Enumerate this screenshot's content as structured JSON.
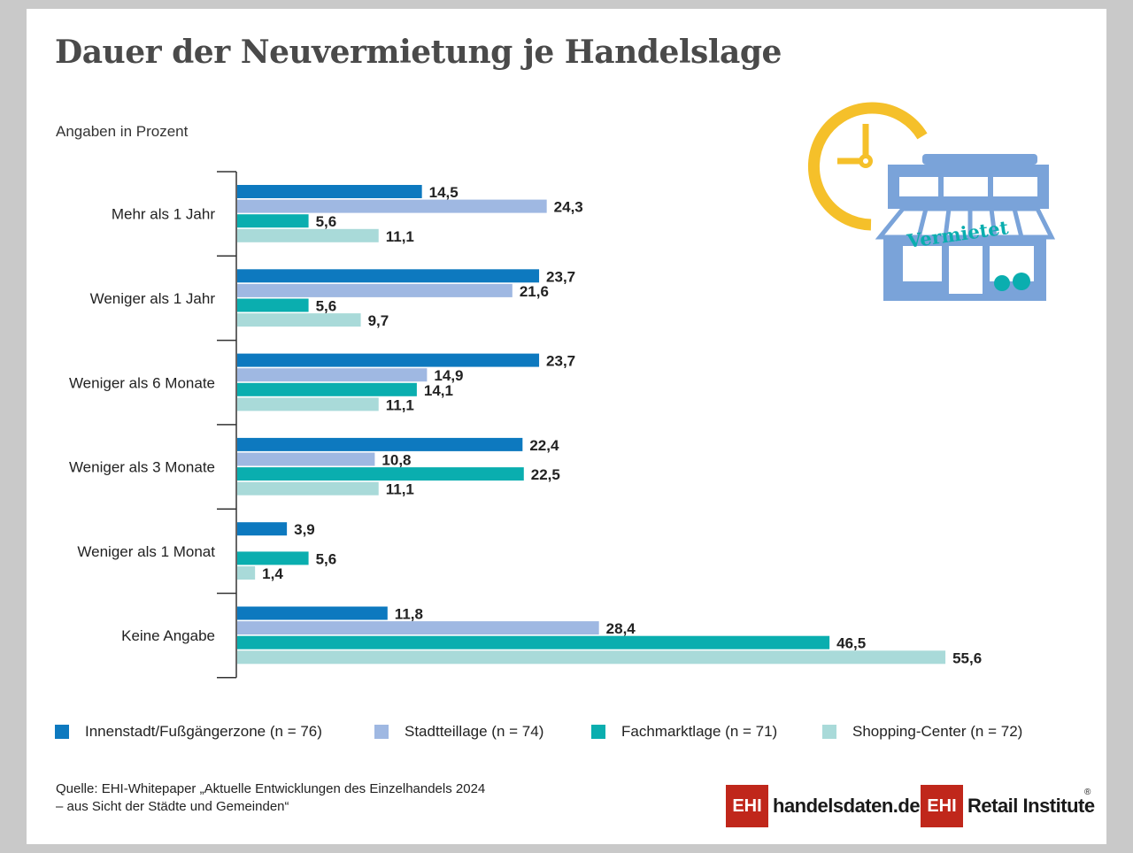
{
  "title": "Dauer der Neuvermietung je Handelslage",
  "subtitle": "Angaben in Prozent",
  "illustration": {
    "sign_text": "Vermietet",
    "icons": [
      "clock-icon",
      "shop-icon"
    ]
  },
  "colors": {
    "innenstadt": "#0d79bf",
    "stadtteil": "#9fb8e2",
    "fachmarkt": "#0aaeaf",
    "shopping": "#a9dad9"
  },
  "chart_data": {
    "type": "bar",
    "orientation": "horizontal",
    "categories": [
      "Mehr als 1 Jahr",
      "Weniger als 1 Jahr",
      "Weniger als 6 Monate",
      "Weniger als 3 Monate",
      "Weniger als 1 Monat",
      "Keine Angabe"
    ],
    "series": [
      {
        "name": "Innenstadt/Fußgängerzone (n = 76)",
        "color": "#0d79bf",
        "values": [
          14.5,
          23.7,
          23.7,
          22.4,
          3.9,
          11.8
        ],
        "labels": [
          "14,5",
          "23,7",
          "23,7",
          "22,4",
          "3,9",
          "11,8"
        ]
      },
      {
        "name": "Stadtteillage (n = 74)",
        "color": "#9fb8e2",
        "values": [
          24.3,
          21.6,
          14.9,
          10.8,
          null,
          28.4
        ],
        "labels": [
          "24,3",
          "21,6",
          "14,9",
          "10,8",
          "",
          "28,4"
        ]
      },
      {
        "name": "Fachmarktlage (n = 71)",
        "color": "#0aaeaf",
        "values": [
          5.6,
          5.6,
          14.1,
          22.5,
          5.6,
          46.5
        ],
        "labels": [
          "5,6",
          "5,6",
          "14,1",
          "22,5",
          "5,6",
          "46,5"
        ]
      },
      {
        "name": "Shopping-Center (n = 72)",
        "color": "#a9dad9",
        "values": [
          11.1,
          9.7,
          11.1,
          11.1,
          1.4,
          55.6
        ],
        "labels": [
          "11,1",
          "9,7",
          "11,1",
          "11,1",
          "1,4",
          "55,6"
        ]
      }
    ],
    "xlim": [
      0,
      60
    ],
    "unit": "Prozent",
    "grid": false,
    "legend_position": "bottom"
  },
  "source_lines": [
    "Quelle: EHI-Whitepaper „Aktuelle Entwicklungen des Einzelhandels 2024",
    "– aus Sicht der Städte und Gemeinden“"
  ],
  "logos": [
    {
      "badge": "EHI",
      "text": "handelsdaten.de",
      "color": "#c0271b"
    },
    {
      "badge": "EHI",
      "text": "Retail Institute",
      "mark": "®",
      "color": "#c0271b"
    }
  ]
}
